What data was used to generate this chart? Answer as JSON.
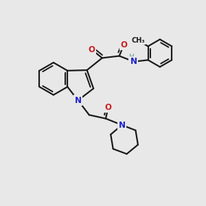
{
  "bg_color": "#e8e8e8",
  "bond_color": "#1a1a1a",
  "N_color": "#2020cc",
  "O_color": "#cc2020",
  "H_color": "#6a9a9a",
  "lw": 1.6,
  "figsize": [
    3.0,
    3.0
  ],
  "dpi": 100,
  "xlim": [
    0,
    10
  ],
  "ylim": [
    0,
    10
  ]
}
